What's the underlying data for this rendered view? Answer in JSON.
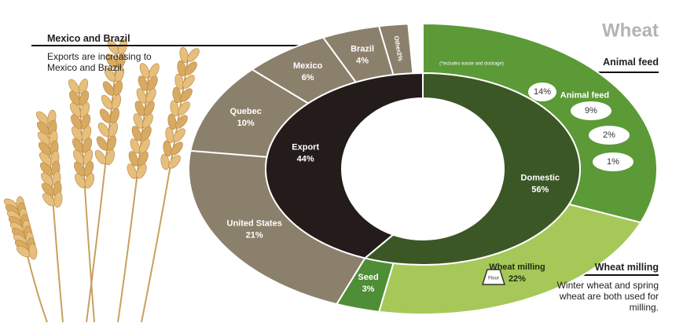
{
  "chart_data": {
    "type": "donut",
    "title": "Wheat",
    "inner": {
      "categories": [
        "Domestic",
        "Export"
      ],
      "values": [
        56,
        44
      ],
      "value_labels": [
        "56%",
        "44%"
      ],
      "colors": [
        "#3b5726",
        "#241c1a"
      ]
    },
    "outer": {
      "categories": [
        "Animal feed",
        "Wheat milling",
        "Seed",
        "United States",
        "Quebec",
        "Mexico",
        "Brazil",
        "Other"
      ],
      "values": [
        31,
        22,
        3,
        21,
        10,
        6,
        4,
        2
      ],
      "value_labels": [
        "31%",
        "22%",
        "3%",
        "21%",
        "10%",
        "6%",
        "4%",
        "2%"
      ],
      "colors": [
        "#5b9a36",
        "#a6c858",
        "#4e8e36",
        "#8b806b",
        "#8b806b",
        "#8b806b",
        "#8b806b",
        "#8b806b"
      ]
    },
    "note": "(*includes waste and dockage)",
    "animal_feed_breakdown": {
      "values": [
        14,
        9,
        2,
        1
      ],
      "value_labels": [
        "14%",
        "9%",
        "2%",
        "1%"
      ]
    },
    "flour_label": "Flour",
    "annotations": [
      {
        "title": "Mexico and Brazil",
        "text": "Exports are increasing to Mexico and Brazil."
      },
      {
        "title": "Animal feed"
      },
      {
        "title": "Wheat milling",
        "text": "Winter wheat and spring wheat are both used for milling."
      }
    ]
  }
}
